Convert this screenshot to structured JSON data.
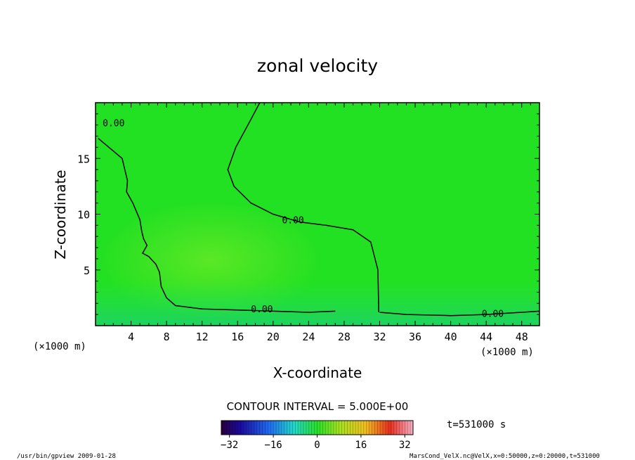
{
  "chart_data": {
    "type": "heatmap",
    "title": "zonal velocity",
    "xlabel": "X-coordinate",
    "ylabel": "Z-coordinate",
    "x_unit": "(×1000 m)",
    "x_unit_right": "(×1000 m)",
    "xlim": [
      0,
      50
    ],
    "ylim": [
      0,
      20
    ],
    "x_ticks": [
      4,
      8,
      12,
      16,
      20,
      24,
      28,
      32,
      36,
      40,
      44,
      48
    ],
    "y_ticks": [
      5,
      10,
      15
    ],
    "contour_interval_label": "CONTOUR INTERVAL = 5.000E+00",
    "time_label": "t=531000 s",
    "colorbar": {
      "min": -35,
      "max": 35,
      "ticks": [
        -32,
        -16,
        0,
        16,
        32
      ]
    },
    "contours": [
      {
        "level": "0.00",
        "points": [
          [
            18.5,
            20
          ],
          [
            17.5,
            18.5
          ],
          [
            15.8,
            16
          ],
          [
            14.9,
            14
          ],
          [
            15.6,
            12.5
          ],
          [
            17.5,
            11
          ],
          [
            20,
            10
          ],
          [
            23,
            9.3
          ],
          [
            26,
            9
          ],
          [
            29,
            8.6
          ],
          [
            31,
            7.5
          ],
          [
            31.8,
            5
          ],
          [
            31.9,
            1.2
          ]
        ]
      },
      {
        "level": "0.00",
        "points": [
          [
            0.3,
            16.8
          ],
          [
            1.5,
            16
          ],
          [
            3,
            15
          ],
          [
            3.6,
            13
          ],
          [
            3.5,
            12
          ],
          [
            4.2,
            11
          ],
          [
            5,
            9.5
          ],
          [
            5.2,
            8.5
          ],
          [
            5.4,
            7.8
          ],
          [
            5.8,
            7.2
          ],
          [
            5.3,
            6.5
          ],
          [
            6,
            6.2
          ],
          [
            6.8,
            5.5
          ],
          [
            7.2,
            4.8
          ],
          [
            7.4,
            3.5
          ],
          [
            8,
            2.5
          ],
          [
            9,
            1.8
          ],
          [
            12,
            1.5
          ],
          [
            16,
            1.4
          ],
          [
            20,
            1.3
          ],
          [
            24,
            1.2
          ],
          [
            27,
            1.3
          ]
        ]
      },
      {
        "level": "0.00",
        "points": [
          [
            32,
            1.2
          ],
          [
            35,
            1.0
          ],
          [
            40,
            0.9
          ],
          [
            44,
            1.0
          ],
          [
            48,
            1.2
          ],
          [
            50,
            1.3
          ]
        ]
      }
    ],
    "contour_labels": [
      {
        "text": "0.00",
        "x": 21,
        "y": 9.5
      },
      {
        "text": "0.00",
        "x": 17.5,
        "y": 1.5
      },
      {
        "text": "0.00",
        "x": 43.5,
        "y": 1.1
      },
      {
        "text": "0.00",
        "x": 0.8,
        "y": 18.2
      }
    ]
  },
  "footer": {
    "left": "/usr/bin/gpview  2009-01-28",
    "right": "MarsCond_VelX.nc@VelX,x=0:50000,z=0:20000,t=531000"
  },
  "colors": {
    "field": "#22e022",
    "field_light": "#7ef02a",
    "field_dark": "#1ad07a",
    "contour": "#000000"
  }
}
